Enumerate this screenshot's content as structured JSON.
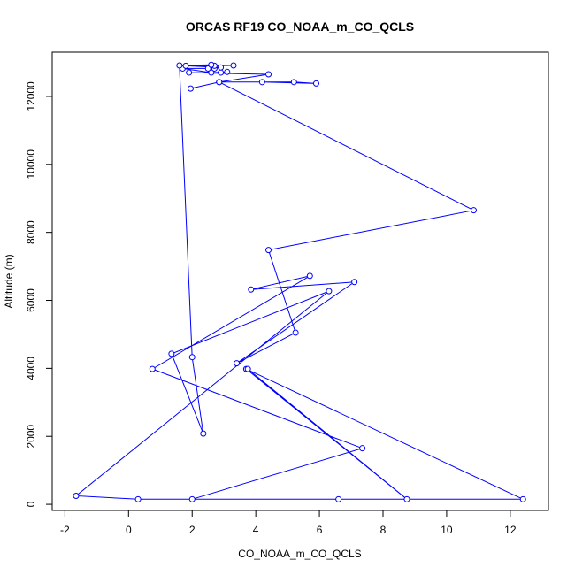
{
  "chart_data": {
    "type": "line",
    "title": "ORCAS RF19 CO_NOAA_m_CO_QCLS",
    "xlabel": "CO_NOAA_m_CO_QCLS",
    "ylabel": "Altitude (m)",
    "xlim": [
      -2.4,
      13.2
    ],
    "ylim": [
      -180,
      13300
    ],
    "xticks": [
      -2,
      0,
      2,
      4,
      6,
      8,
      10,
      12
    ],
    "yticks": [
      0,
      2000,
      4000,
      6000,
      8000,
      10000,
      12000
    ],
    "grid": false,
    "color": "#0000ff",
    "markers": "open-circle",
    "series": [
      {
        "x": [
          6.6,
          2.0,
          7.35,
          0.75,
          5.7,
          3.85,
          7.1,
          3.4,
          5.25,
          4.4,
          10.85,
          2.85,
          1.95,
          2.85,
          4.2,
          5.9,
          5.2,
          2.85,
          4.4,
          1.9,
          2.9,
          3.1,
          2.6,
          1.7,
          2.7,
          2.5,
          2.9,
          1.8,
          2.7,
          3.3,
          2.6,
          1.6,
          2.0,
          2.35,
          1.35,
          6.3,
          -1.65,
          0.3,
          12.4,
          3.7,
          8.75,
          3.75
        ],
        "y": [
          150,
          150,
          1650,
          3980,
          6720,
          6320,
          6540,
          4150,
          5050,
          7480,
          8650,
          12420,
          12230,
          12420,
          12420,
          12380,
          12420,
          12420,
          12650,
          12700,
          12700,
          12720,
          12700,
          12820,
          12820,
          12820,
          12850,
          12900,
          12900,
          12910,
          12930,
          12910,
          4330,
          2080,
          4430,
          6270,
          250,
          150,
          150,
          3980,
          150,
          3980
        ]
      }
    ]
  }
}
